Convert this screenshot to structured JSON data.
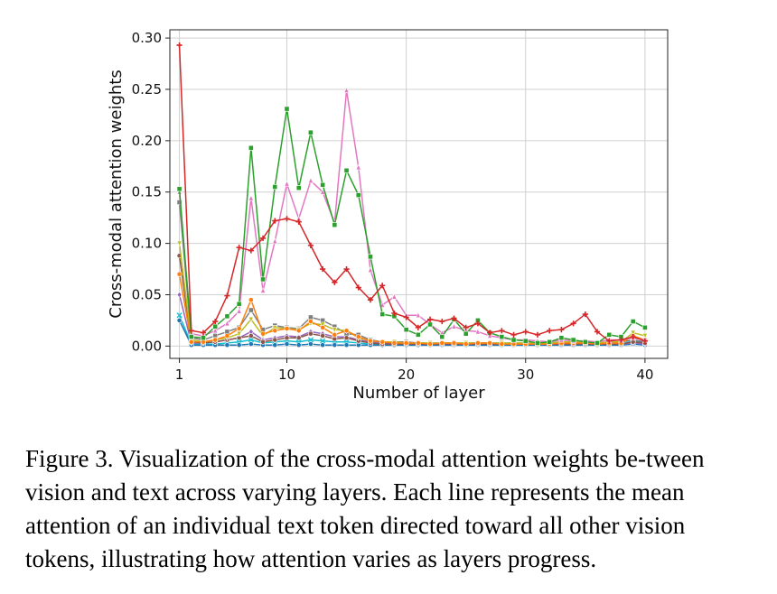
{
  "chart_data": {
    "type": "line",
    "title": "",
    "xlabel": "Number of layer",
    "ylabel": "Cross-modal attention weights",
    "xlim": [
      0.2,
      41.9
    ],
    "ylim": [
      -0.012,
      0.308
    ],
    "xticks": [
      1,
      10,
      20,
      30,
      40
    ],
    "yticks": [
      0.0,
      0.05,
      0.1,
      0.15,
      0.2,
      0.25,
      0.3
    ],
    "ytick_labels": [
      "0.00",
      "0.05",
      "0.10",
      "0.15",
      "0.20",
      "0.25",
      "0.30"
    ],
    "grid": true,
    "x": [
      1,
      2,
      3,
      4,
      5,
      6,
      7,
      8,
      9,
      10,
      11,
      12,
      13,
      14,
      15,
      16,
      17,
      18,
      19,
      20,
      21,
      22,
      23,
      24,
      25,
      26,
      27,
      28,
      29,
      30,
      31,
      32,
      33,
      34,
      35,
      36,
      37,
      38,
      39,
      40
    ],
    "series": [
      {
        "color": "#d62728",
        "marker": "plus",
        "values": [
          0.293,
          0.015,
          0.013,
          0.024,
          0.049,
          0.096,
          0.093,
          0.105,
          0.122,
          0.124,
          0.121,
          0.098,
          0.075,
          0.062,
          0.075,
          0.057,
          0.045,
          0.059,
          0.032,
          0.028,
          0.018,
          0.026,
          0.024,
          0.027,
          0.018,
          0.022,
          0.013,
          0.015,
          0.011,
          0.014,
          0.011,
          0.015,
          0.016,
          0.022,
          0.031,
          0.014,
          0.005,
          0.006,
          0.009,
          0.005
        ]
      },
      {
        "color": "#2ca02c",
        "marker": "square",
        "values": [
          0.153,
          0.009,
          0.008,
          0.019,
          0.029,
          0.041,
          0.193,
          0.065,
          0.155,
          0.231,
          0.154,
          0.208,
          0.157,
          0.118,
          0.171,
          0.147,
          0.087,
          0.031,
          0.029,
          0.016,
          0.011,
          0.021,
          0.009,
          0.026,
          0.012,
          0.025,
          0.013,
          0.009,
          0.006,
          0.005,
          0.003,
          0.004,
          0.008,
          0.006,
          0.004,
          0.003,
          0.011,
          0.009,
          0.024,
          0.018
        ]
      },
      {
        "color": "#e377c2",
        "marker": "triangle",
        "values": [
          0.15,
          0.012,
          0.01,
          0.015,
          0.022,
          0.034,
          0.144,
          0.054,
          0.102,
          0.158,
          0.124,
          0.161,
          0.15,
          0.12,
          0.249,
          0.174,
          0.074,
          0.04,
          0.048,
          0.03,
          0.03,
          0.021,
          0.013,
          0.019,
          0.015,
          0.014,
          0.01,
          0.008,
          0.006,
          0.006,
          0.005,
          0.004,
          0.006,
          0.005,
          0.005,
          0.004,
          0.006,
          0.006,
          0.008,
          0.006
        ]
      },
      {
        "color": "#ff7f0e",
        "marker": "circle",
        "values": [
          0.07,
          0.004,
          0.004,
          0.006,
          0.01,
          0.017,
          0.045,
          0.012,
          0.015,
          0.017,
          0.015,
          0.024,
          0.018,
          0.011,
          0.015,
          0.009,
          0.005,
          0.004,
          0.003,
          0.003,
          0.003,
          0.002,
          0.003,
          0.003,
          0.002,
          0.003,
          0.003,
          0.002,
          0.002,
          0.002,
          0.002,
          0.002,
          0.003,
          0.003,
          0.003,
          0.002,
          0.003,
          0.003,
          0.01,
          0.006
        ]
      },
      {
        "color": "#bcbd22",
        "marker": "triangle-down",
        "values": [
          0.1,
          0.006,
          0.004,
          0.006,
          0.008,
          0.012,
          0.026,
          0.01,
          0.018,
          0.017,
          0.016,
          0.022,
          0.021,
          0.016,
          0.015,
          0.008,
          0.005,
          0.004,
          0.004,
          0.003,
          0.003,
          0.003,
          0.003,
          0.003,
          0.003,
          0.003,
          0.003,
          0.003,
          0.003,
          0.003,
          0.003,
          0.003,
          0.004,
          0.004,
          0.004,
          0.003,
          0.004,
          0.004,
          0.013,
          0.01
        ]
      },
      {
        "color": "#8c564b",
        "marker": "circle",
        "values": [
          0.088,
          0.004,
          0.003,
          0.004,
          0.006,
          0.008,
          0.01,
          0.004,
          0.006,
          0.008,
          0.008,
          0.012,
          0.01,
          0.007,
          0.008,
          0.005,
          0.003,
          0.002,
          0.002,
          0.002,
          0.002,
          0.002,
          0.002,
          0.002,
          0.002,
          0.002,
          0.002,
          0.002,
          0.002,
          0.002,
          0.002,
          0.002,
          0.002,
          0.002,
          0.002,
          0.002,
          0.002,
          0.002,
          0.004,
          0.003
        ]
      },
      {
        "color": "#7f7f7f",
        "marker": "square",
        "values": [
          0.14,
          0.008,
          0.006,
          0.01,
          0.014,
          0.018,
          0.035,
          0.016,
          0.02,
          0.018,
          0.017,
          0.028,
          0.025,
          0.019,
          0.012,
          0.011,
          0.006,
          0.004,
          0.004,
          0.004,
          0.003,
          0.003,
          0.003,
          0.003,
          0.003,
          0.003,
          0.003,
          0.003,
          0.003,
          0.003,
          0.003,
          0.003,
          0.004,
          0.004,
          0.004,
          0.003,
          0.004,
          0.004,
          0.006,
          0.004
        ]
      },
      {
        "color": "#9467bd",
        "marker": "diamond",
        "values": [
          0.05,
          0.003,
          0.003,
          0.004,
          0.006,
          0.008,
          0.014,
          0.006,
          0.008,
          0.01,
          0.009,
          0.014,
          0.012,
          0.009,
          0.009,
          0.006,
          0.004,
          0.003,
          0.003,
          0.003,
          0.003,
          0.002,
          0.002,
          0.002,
          0.002,
          0.002,
          0.002,
          0.002,
          0.002,
          0.002,
          0.002,
          0.002,
          0.002,
          0.002,
          0.002,
          0.002,
          0.002,
          0.002,
          0.003,
          0.002
        ]
      },
      {
        "color": "#1f77b4",
        "marker": "circle",
        "values": [
          0.025,
          0.001,
          0.001,
          0.001,
          0.001,
          0.001,
          0.002,
          0.001,
          0.001,
          0.002,
          0.001,
          0.002,
          0.001,
          0.001,
          0.001,
          0.001,
          0.001,
          0.001,
          0.001,
          0.001,
          0.001,
          0.001,
          0.001,
          0.001,
          0.001,
          0.001,
          0.001,
          0.001,
          0.001,
          0.001,
          0.001,
          0.001,
          0.001,
          0.001,
          0.001,
          0.001,
          0.001,
          0.001,
          0.002,
          0.001
        ]
      },
      {
        "color": "#17becf",
        "marker": "x",
        "values": [
          0.03,
          0.002,
          0.002,
          0.002,
          0.003,
          0.004,
          0.006,
          0.003,
          0.004,
          0.005,
          0.004,
          0.006,
          0.005,
          0.004,
          0.004,
          0.003,
          0.002,
          0.002,
          0.002,
          0.002,
          0.002,
          0.002,
          0.002,
          0.002,
          0.002,
          0.002,
          0.002,
          0.002,
          0.002,
          0.002,
          0.002,
          0.002,
          0.002,
          0.002,
          0.002,
          0.002,
          0.002,
          0.002,
          0.005,
          0.003
        ]
      }
    ]
  },
  "caption": "Figure 3.  Visualization of the cross-modal attention weights be-tween vision and text across varying layers. Each line represents the mean attention of an individual text token directed toward all other vision tokens, illustrating how attention varies as layers progress."
}
